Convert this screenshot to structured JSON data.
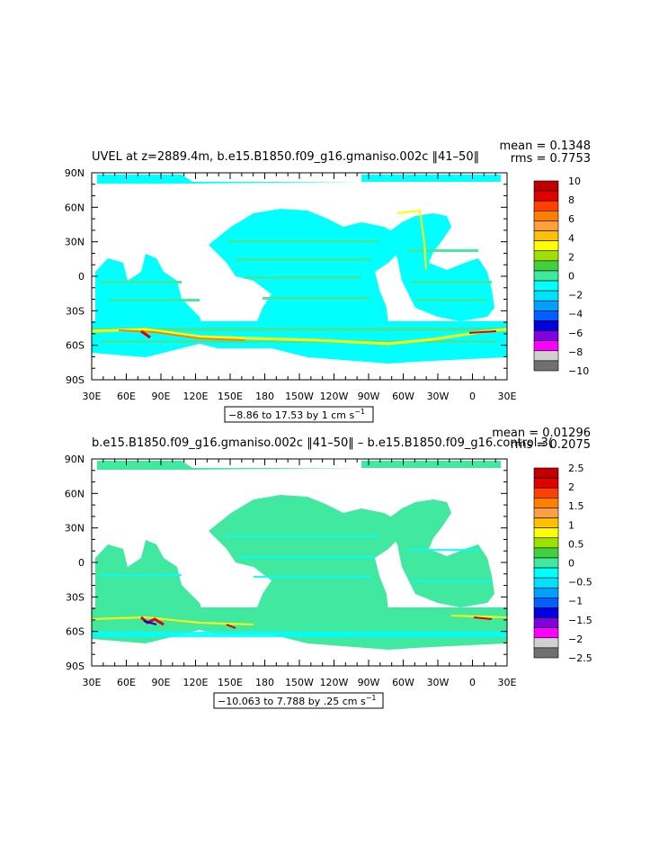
{
  "figure": {
    "background": "#ffffff"
  },
  "chart_data": [
    {
      "type": "heatmap",
      "title": "UVEL at z=2889.4m, b.e15.B1850.f09_g16.gmaniso.002c ‖41–50‖",
      "stats": [
        "mean = 0.1348",
        "rms = 0.7753"
      ],
      "range_label": "−8.86 to 17.53 by 1 cm s",
      "range_exponent": "−1",
      "x_ticks": [
        "30E",
        "60E",
        "90E",
        "120E",
        "150E",
        "180",
        "150W",
        "120W",
        "90W",
        "60W",
        "30W",
        "0",
        "30E"
      ],
      "y_ticks": [
        "90N",
        "60N",
        "30N",
        "0",
        "30S",
        "60S",
        "90S"
      ],
      "colorbar": {
        "labels": [
          "10",
          "8",
          "6",
          "4",
          "2",
          "0",
          "−2",
          "−4",
          "−6",
          "−8",
          "−10"
        ],
        "colors": [
          "#c00000",
          "#e00000",
          "#ff4000",
          "#ff8000",
          "#ffa040",
          "#ffc000",
          "#ffff00",
          "#a0e000",
          "#40d040",
          "#40e8a0",
          "#00ffff",
          "#00e0ff",
          "#00a0ff",
          "#0060ff",
          "#0000e0",
          "#8000e0",
          "#ff00ff",
          "#d0d0d0",
          "#707070"
        ]
      },
      "field": {
        "dominant": "#00ffff",
        "secondary": "#40e8a0",
        "highlight": [
          "#ffff00",
          "#ff8000",
          "#e00000"
        ],
        "land": "#ffffff"
      }
    },
    {
      "type": "heatmap",
      "title": "b.e15.B1850.f09_g16.gmaniso.002c ‖41–50‖ – b.e15.B1850.f09_g16.control.3(",
      "stats": [
        "mean = 0.01296",
        "rms = 0.2075"
      ],
      "range_label": "−10.063 to 7.788 by .25 cm s",
      "range_exponent": "−1",
      "x_ticks": [
        "30E",
        "60E",
        "90E",
        "120E",
        "150E",
        "180",
        "150W",
        "120W",
        "90W",
        "60W",
        "30W",
        "0",
        "30E"
      ],
      "y_ticks": [
        "90N",
        "60N",
        "30N",
        "0",
        "30S",
        "60S",
        "90S"
      ],
      "colorbar": {
        "labels": [
          "2.5",
          "2",
          "1.5",
          "1",
          "0.5",
          "0",
          "−0.5",
          "−1",
          "−1.5",
          "−2",
          "−2.5"
        ],
        "colors": [
          "#c00000",
          "#e00000",
          "#ff4000",
          "#ff8000",
          "#ffa040",
          "#ffc000",
          "#ffff00",
          "#a0e000",
          "#40d040",
          "#40e8a0",
          "#00ffff",
          "#00e0ff",
          "#00a0ff",
          "#0060ff",
          "#0000e0",
          "#8000e0",
          "#ff00ff",
          "#d0d0d0",
          "#707070"
        ]
      },
      "field": {
        "dominant": "#40e8a0",
        "secondary": "#00ffff",
        "highlight": [
          "#ffff00",
          "#e00000",
          "#0000e0"
        ],
        "land": "#ffffff"
      }
    }
  ]
}
